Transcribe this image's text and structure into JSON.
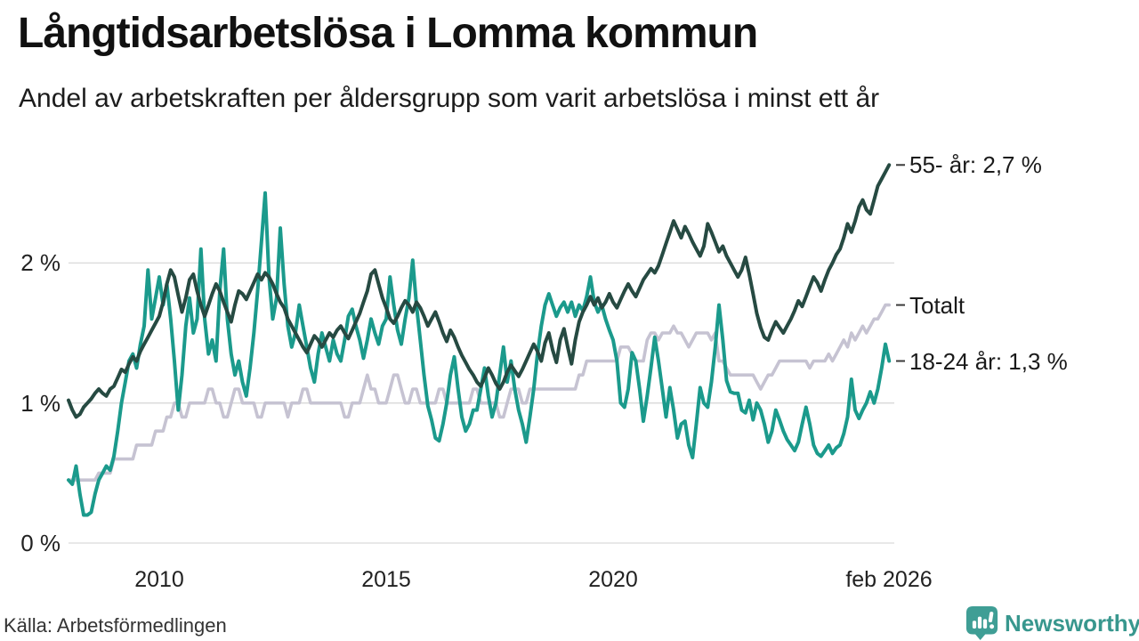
{
  "header": {
    "title": "Långtidsarbetslösa i Lomma kommun",
    "subtitle": "Andel av arbetskraften per åldersgrupp som varit arbetslösa i minst ett år"
  },
  "footer": {
    "source": "Källa: Arbetsförmedlingen",
    "brand": "Newsworthy"
  },
  "colors": {
    "series_55": "#264a42",
    "series_total": "#c6c3d2",
    "series_18_24": "#1b9a8c",
    "grid": "#d9d9d9",
    "annotation_dash": "#3a3a3a",
    "brand_teal": "#3f9e95"
  },
  "chart_data": {
    "type": "line",
    "title": "Långtidsarbetslösa i Lomma kommun",
    "subtitle": "Andel av arbetskraften per åldersgrupp som varit arbetslösa i minst ett år",
    "unit": "%",
    "frequency": "monthly",
    "x_start": "jan 2008",
    "x_end": "feb 2026",
    "grid": true,
    "ylim": [
      0,
      2.9
    ],
    "y_ticks": [
      "0 %",
      "1 %",
      "2 %"
    ],
    "y_tick_values": [
      0,
      1,
      2
    ],
    "x_ticks": [
      "2010",
      "2015",
      "2020",
      "feb 2026"
    ],
    "x_tick_years": [
      2010,
      2015,
      2020,
      2026.083
    ],
    "legend_position": "right-end-labels",
    "series": [
      {
        "id": "55-ar",
        "name": "55- år",
        "label": "55- år: 2,7 %",
        "last_value": 2.7,
        "color": "#264a42",
        "width": 4,
        "values": [
          1.02,
          0.95,
          0.9,
          0.92,
          0.97,
          1.0,
          1.03,
          1.07,
          1.1,
          1.07,
          1.05,
          1.1,
          1.12,
          1.18,
          1.24,
          1.22,
          1.28,
          1.33,
          1.3,
          1.37,
          1.42,
          1.47,
          1.52,
          1.57,
          1.62,
          1.72,
          1.85,
          1.95,
          1.9,
          1.77,
          1.65,
          1.75,
          1.88,
          1.92,
          1.8,
          1.7,
          1.62,
          1.7,
          1.78,
          1.85,
          1.8,
          1.72,
          1.65,
          1.58,
          1.7,
          1.8,
          1.78,
          1.74,
          1.8,
          1.86,
          1.92,
          1.88,
          1.93,
          1.9,
          1.85,
          1.78,
          1.72,
          1.68,
          1.6,
          1.55,
          1.5,
          1.45,
          1.4,
          1.36,
          1.42,
          1.48,
          1.45,
          1.4,
          1.45,
          1.5,
          1.47,
          1.52,
          1.55,
          1.5,
          1.46,
          1.52,
          1.58,
          1.64,
          1.72,
          1.8,
          1.92,
          1.95,
          1.85,
          1.75,
          1.68,
          1.6,
          1.57,
          1.62,
          1.68,
          1.73,
          1.7,
          1.65,
          1.72,
          1.68,
          1.62,
          1.55,
          1.6,
          1.65,
          1.58,
          1.5,
          1.44,
          1.52,
          1.47,
          1.4,
          1.34,
          1.29,
          1.24,
          1.2,
          1.15,
          1.12,
          1.18,
          1.25,
          1.2,
          1.14,
          1.1,
          1.15,
          1.22,
          1.27,
          1.23,
          1.19,
          1.24,
          1.3,
          1.36,
          1.42,
          1.37,
          1.3,
          1.43,
          1.5,
          1.38,
          1.29,
          1.45,
          1.53,
          1.4,
          1.28,
          1.45,
          1.58,
          1.65,
          1.7,
          1.76,
          1.7,
          1.75,
          1.68,
          1.72,
          1.78,
          1.72,
          1.68,
          1.74,
          1.8,
          1.85,
          1.8,
          1.76,
          1.82,
          1.88,
          1.92,
          1.96,
          1.93,
          1.98,
          2.06,
          2.14,
          2.22,
          2.3,
          2.24,
          2.18,
          2.26,
          2.21,
          2.15,
          2.1,
          2.05,
          2.12,
          2.28,
          2.22,
          2.15,
          2.08,
          2.12,
          2.05,
          2.0,
          1.95,
          1.9,
          1.95,
          2.04,
          1.92,
          1.78,
          1.64,
          1.54,
          1.47,
          1.45,
          1.52,
          1.58,
          1.54,
          1.5,
          1.55,
          1.6,
          1.66,
          1.73,
          1.69,
          1.76,
          1.83,
          1.9,
          1.86,
          1.8,
          1.88,
          1.95,
          2.0,
          2.06,
          2.1,
          2.18,
          2.28,
          2.22,
          2.3,
          2.4,
          2.45,
          2.38,
          2.35,
          2.45,
          2.55,
          2.6,
          2.65,
          2.7
        ]
      },
      {
        "id": "totalt",
        "name": "Totalt",
        "label": "Totalt",
        "last_value": 1.7,
        "color": "#c6c3d2",
        "width": 3.6,
        "values": [
          0.45,
          0.45,
          0.45,
          0.45,
          0.45,
          0.45,
          0.45,
          0.45,
          0.5,
          0.5,
          0.5,
          0.5,
          0.6,
          0.6,
          0.6,
          0.6,
          0.6,
          0.6,
          0.7,
          0.7,
          0.7,
          0.7,
          0.7,
          0.8,
          0.8,
          0.8,
          0.9,
          0.9,
          1.0,
          1.0,
          0.9,
          0.9,
          1.0,
          1.0,
          1.0,
          1.0,
          1.0,
          1.1,
          1.1,
          1.0,
          1.0,
          0.9,
          0.9,
          1.0,
          1.1,
          1.1,
          1.0,
          1.0,
          1.0,
          1.0,
          0.9,
          0.9,
          1.0,
          1.0,
          1.0,
          1.0,
          1.0,
          1.0,
          0.9,
          1.0,
          1.0,
          1.0,
          1.1,
          1.1,
          1.0,
          1.0,
          1.0,
          1.0,
          1.0,
          1.0,
          1.0,
          1.0,
          1.0,
          0.9,
          0.9,
          1.0,
          1.0,
          1.0,
          1.1,
          1.2,
          1.1,
          1.1,
          1.0,
          1.0,
          1.0,
          1.1,
          1.2,
          1.2,
          1.1,
          1.0,
          1.0,
          1.1,
          1.1,
          1.0,
          1.0,
          1.0,
          1.0,
          1.0,
          1.1,
          1.1,
          1.0,
          1.0,
          1.0,
          1.0,
          1.0,
          1.0,
          1.0,
          1.1,
          1.1,
          1.0,
          1.0,
          1.0,
          1.0,
          1.0,
          0.9,
          0.9,
          1.0,
          1.1,
          1.1,
          1.1,
          1.0,
          1.0,
          1.1,
          1.1,
          1.1,
          1.1,
          1.1,
          1.1,
          1.1,
          1.1,
          1.1,
          1.1,
          1.1,
          1.1,
          1.1,
          1.2,
          1.2,
          1.3,
          1.3,
          1.3,
          1.3,
          1.3,
          1.3,
          1.3,
          1.3,
          1.3,
          1.4,
          1.4,
          1.4,
          1.35,
          1.3,
          1.3,
          1.3,
          1.45,
          1.5,
          1.5,
          1.45,
          1.5,
          1.5,
          1.5,
          1.55,
          1.5,
          1.5,
          1.45,
          1.4,
          1.45,
          1.5,
          1.5,
          1.5,
          1.5,
          1.45,
          1.5,
          1.3,
          1.3,
          1.25,
          1.2,
          1.2,
          1.2,
          1.2,
          1.2,
          1.2,
          1.2,
          1.15,
          1.1,
          1.15,
          1.2,
          1.2,
          1.25,
          1.3,
          1.3,
          1.3,
          1.3,
          1.3,
          1.3,
          1.3,
          1.3,
          1.25,
          1.3,
          1.3,
          1.3,
          1.3,
          1.35,
          1.3,
          1.35,
          1.4,
          1.45,
          1.4,
          1.5,
          1.45,
          1.5,
          1.55,
          1.5,
          1.55,
          1.6,
          1.6,
          1.65,
          1.7,
          1.7
        ]
      },
      {
        "id": "18-24-ar",
        "name": "18-24 år",
        "label": "18-24 år: 1,3 %",
        "last_value": 1.3,
        "color": "#1b9a8c",
        "width": 4,
        "values": [
          0.45,
          0.42,
          0.55,
          0.35,
          0.2,
          0.2,
          0.22,
          0.35,
          0.45,
          0.5,
          0.55,
          0.52,
          0.62,
          0.8,
          1.0,
          1.15,
          1.3,
          1.35,
          1.25,
          1.42,
          1.55,
          1.95,
          1.6,
          1.75,
          1.9,
          1.7,
          1.85,
          1.6,
          1.3,
          0.95,
          1.2,
          1.55,
          1.75,
          1.5,
          1.6,
          2.1,
          1.6,
          1.35,
          1.45,
          1.3,
          1.8,
          2.1,
          1.6,
          1.35,
          1.2,
          1.3,
          1.15,
          1.05,
          1.25,
          1.5,
          1.8,
          2.15,
          2.5,
          1.9,
          1.6,
          1.75,
          2.25,
          1.85,
          1.55,
          1.4,
          1.5,
          1.7,
          1.55,
          1.4,
          1.25,
          1.15,
          1.35,
          1.5,
          1.4,
          1.3,
          1.45,
          1.35,
          1.3,
          1.45,
          1.62,
          1.67,
          1.55,
          1.45,
          1.32,
          1.45,
          1.6,
          1.5,
          1.42,
          1.55,
          1.6,
          1.9,
          1.7,
          1.52,
          1.42,
          1.6,
          1.75,
          2.02,
          1.7,
          1.45,
          1.2,
          0.98,
          0.88,
          0.75,
          0.73,
          0.85,
          1.0,
          1.2,
          1.33,
          1.1,
          0.9,
          0.8,
          0.85,
          0.95,
          0.95,
          1.1,
          1.25,
          1.05,
          0.9,
          1.0,
          1.2,
          1.4,
          1.15,
          1.3,
          1.1,
          0.95,
          0.85,
          0.72,
          0.9,
          1.1,
          1.35,
          1.55,
          1.7,
          1.78,
          1.7,
          1.62,
          1.68,
          1.72,
          1.65,
          1.72,
          1.62,
          1.7,
          1.66,
          1.76,
          1.9,
          1.72,
          1.65,
          1.7,
          1.6,
          1.52,
          1.45,
          1.3,
          1.0,
          0.97,
          1.1,
          1.36,
          1.3,
          1.1,
          0.87,
          1.05,
          1.25,
          1.47,
          1.3,
          1.1,
          0.9,
          1.11,
          0.95,
          0.75,
          0.85,
          0.87,
          0.7,
          0.61,
          0.85,
          1.11,
          1.0,
          0.97,
          1.15,
          1.4,
          1.7,
          1.45,
          1.16,
          1.08,
          1.07,
          1.07,
          0.95,
          0.93,
          1.02,
          0.88,
          1.0,
          0.95,
          0.85,
          0.72,
          0.8,
          0.95,
          0.88,
          0.8,
          0.74,
          0.7,
          0.66,
          0.72,
          0.85,
          0.97,
          0.85,
          0.7,
          0.64,
          0.62,
          0.66,
          0.7,
          0.64,
          0.68,
          0.7,
          0.78,
          0.9,
          1.17,
          0.95,
          0.89,
          0.95,
          1.0,
          1.08,
          1.0,
          1.1,
          1.25,
          1.42,
          1.3
        ]
      }
    ]
  }
}
